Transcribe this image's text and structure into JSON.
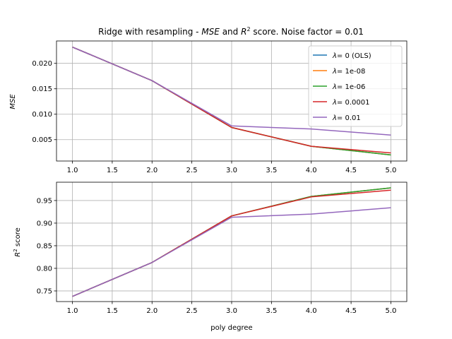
{
  "figure": {
    "title_prefix": "Ridge with resampling - ",
    "title_mse": "MSE",
    "title_and": " and ",
    "title_r": "R",
    "title_sup": "2",
    "title_suffix": " score. Noise factor = 0.01"
  },
  "chart_data": [
    {
      "type": "line",
      "panel": "top",
      "ylabel": "MSE",
      "xlabel": "",
      "x": [
        1,
        2,
        3,
        4,
        5
      ],
      "xlim": [
        0.8,
        5.2
      ],
      "ylim": [
        0.0008,
        0.0244
      ],
      "xticks": [
        "1.0",
        "1.5",
        "2.0",
        "2.5",
        "3.0",
        "3.5",
        "4.0",
        "4.5",
        "5.0"
      ],
      "xtick_values": [
        1.0,
        1.5,
        2.0,
        2.5,
        3.0,
        3.5,
        4.0,
        4.5,
        5.0
      ],
      "yticks": [
        "0.005",
        "0.010",
        "0.015",
        "0.020"
      ],
      "ytick_values": [
        0.005,
        0.01,
        0.015,
        0.02
      ],
      "grid": true,
      "legend": "top-right",
      "series": [
        {
          "name": "= 0 (OLS)",
          "color": "#1f77b4",
          "values": [
            0.0232,
            0.0166,
            0.0074,
            0.0037,
            0.002
          ]
        },
        {
          "name": "= 1e-08",
          "color": "#ff7f0e",
          "values": [
            0.0232,
            0.0166,
            0.0074,
            0.0037,
            0.002
          ]
        },
        {
          "name": "= 1e-06",
          "color": "#2ca02c",
          "values": [
            0.0232,
            0.0166,
            0.0074,
            0.0037,
            0.002
          ]
        },
        {
          "name": "= 0.0001",
          "color": "#d62728",
          "values": [
            0.0232,
            0.0166,
            0.0074,
            0.0037,
            0.0024
          ]
        },
        {
          "name": "= 0.01",
          "color": "#9467bd",
          "values": [
            0.0232,
            0.0166,
            0.0077,
            0.0071,
            0.0059
          ]
        }
      ]
    },
    {
      "type": "line",
      "panel": "bottom",
      "ylabel_r": "R",
      "ylabel_sup": "2",
      "ylabel_rest": " score",
      "xlabel": "poly degree",
      "x": [
        1,
        2,
        3,
        4,
        5
      ],
      "xlim": [
        0.8,
        5.2
      ],
      "ylim": [
        0.7265,
        0.9905
      ],
      "xticks": [
        "1.0",
        "1.5",
        "2.0",
        "2.5",
        "3.0",
        "3.5",
        "4.0",
        "4.5",
        "5.0"
      ],
      "xtick_values": [
        1.0,
        1.5,
        2.0,
        2.5,
        3.0,
        3.5,
        4.0,
        4.5,
        5.0
      ],
      "yticks": [
        "0.75",
        "0.80",
        "0.85",
        "0.90",
        "0.95"
      ],
      "ytick_values": [
        0.75,
        0.8,
        0.85,
        0.9,
        0.95
      ],
      "grid": true,
      "series": [
        {
          "name": "= 0 (OLS)",
          "color": "#1f77b4",
          "values": [
            0.738,
            0.813,
            0.916,
            0.959,
            0.978
          ]
        },
        {
          "name": "= 1e-08",
          "color": "#ff7f0e",
          "values": [
            0.738,
            0.813,
            0.916,
            0.959,
            0.978
          ]
        },
        {
          "name": "= 1e-06",
          "color": "#2ca02c",
          "values": [
            0.738,
            0.813,
            0.916,
            0.959,
            0.978
          ]
        },
        {
          "name": "= 0.0001",
          "color": "#d62728",
          "values": [
            0.738,
            0.813,
            0.916,
            0.958,
            0.973
          ]
        },
        {
          "name": "= 0.01",
          "color": "#9467bd",
          "values": [
            0.738,
            0.813,
            0.913,
            0.92,
            0.934
          ]
        }
      ]
    }
  ]
}
